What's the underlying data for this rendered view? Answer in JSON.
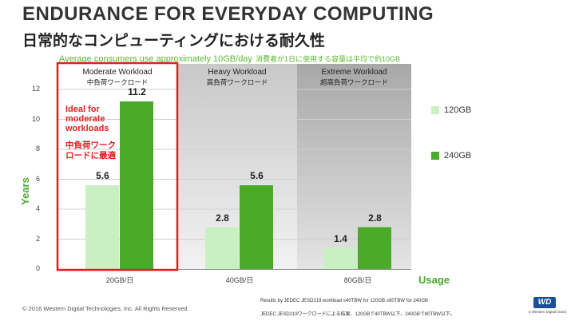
{
  "header": {
    "title": "ENDURANCE FOR EVERYDAY COMPUTING",
    "subtitle": "日常的なコンピューティングにおける耐久性"
  },
  "note": {
    "en": "Average consumers use approximately 10GB/day",
    "ja": "消費者が1日に使用する容量は平均で約10GB"
  },
  "chart_data": {
    "type": "bar",
    "categories": [
      "20GB/日",
      "40GB/日",
      "80GB/日"
    ],
    "groups": [
      {
        "en": "Moderate Workload",
        "ja": "中負荷ワークロード"
      },
      {
        "en": "Heavy Workload",
        "ja": "高負荷ワークロード"
      },
      {
        "en": "Extreme Workload",
        "ja": "超高負荷ワークロード"
      }
    ],
    "series": [
      {
        "name": "120GB",
        "values": [
          5.6,
          2.8,
          1.4
        ],
        "color": "#c8f0c0"
      },
      {
        "name": "240GB",
        "values": [
          11.2,
          5.6,
          2.8
        ],
        "color": "#4aaa2a"
      }
    ],
    "value_labels": [
      [
        "5.6",
        "2.8",
        "1.4"
      ],
      [
        "11.2",
        "5.6",
        "2.8"
      ]
    ],
    "ylabel": "Years",
    "xlabel": "Usage",
    "ylim": [
      0,
      12
    ],
    "yticks": [
      "0",
      "2",
      "4",
      "6",
      "8",
      "10",
      "12"
    ],
    "legend": "right",
    "annotation": {
      "en": "Ideal for moderate workloads",
      "ja": "中負荷ワークロードに最適"
    }
  },
  "footer": {
    "copyright": "© 2016 Western Digital Technologies, Inc. All Rights Reserved.",
    "source_en": "Results by JEDEC JESD219 workload ≤40TBW for 120GB  ≤80TBW for 240GB",
    "source_ja": "JEDEC JESD219ワークロードによる結果、120GBで40TBW以下、240GBで80TBW以下。",
    "logo": "WD",
    "logo_sub": "a Western Digital brand"
  }
}
